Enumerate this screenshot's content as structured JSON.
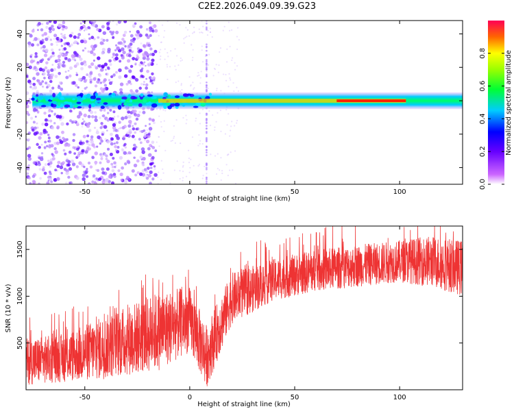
{
  "figure_title": "C2E2.2026.049.09.39.G23",
  "colors": {
    "line": "#ee3333",
    "axis": "#000000",
    "background": "#ffffff"
  },
  "chart_data": [
    {
      "type": "heatmap",
      "title": "C2E2.2026.049.09.39.G23",
      "xlabel": "Height of straight line (km)",
      "ylabel": "Frequency (Hz)",
      "xlim": [
        -78,
        130
      ],
      "ylim": [
        -50,
        48
      ],
      "x_ticks": [
        -50,
        0,
        50,
        100
      ],
      "y_ticks": [
        -40,
        -20,
        0,
        20,
        40
      ],
      "colorbar": {
        "label": "Normalized spectral amplitude",
        "range": [
          0,
          1
        ],
        "ticks": [
          0.0,
          0.2,
          0.4,
          0.6,
          0.8
        ],
        "colormap": "rainbow (magenta-blue-cyan-green-yellow-red)"
      },
      "ridge": {
        "description_frequency_hz": 0,
        "notes": "dominant signal near 0 Hz across the full height range; scattered noise below about -15 km; narrow vertical stripe near 8 km"
      }
    },
    {
      "type": "line",
      "xlabel": "Height of straight line (km)",
      "ylabel": "SNR (10 * v/v)",
      "xlim": [
        -78,
        130
      ],
      "ylim": [
        0,
        1750
      ],
      "x_ticks": [
        -50,
        0,
        50,
        100
      ],
      "y_ticks": [
        500,
        1000,
        1500
      ],
      "trend_points": [
        {
          "x": -78,
          "y_low": 50,
          "y_high": 550
        },
        {
          "x": -60,
          "y_low": 80,
          "y_high": 600
        },
        {
          "x": -45,
          "y_low": 100,
          "y_high": 750
        },
        {
          "x": -30,
          "y_low": 150,
          "y_high": 900
        },
        {
          "x": -15,
          "y_low": 200,
          "y_high": 1050
        },
        {
          "x": 0,
          "y_low": 400,
          "y_high": 1100
        },
        {
          "x": 8,
          "y_low": 20,
          "y_high": 700
        },
        {
          "x": 20,
          "y_low": 700,
          "y_high": 1250
        },
        {
          "x": 40,
          "y_low": 950,
          "y_high": 1400
        },
        {
          "x": 60,
          "y_low": 1050,
          "y_high": 1500
        },
        {
          "x": 80,
          "y_low": 1100,
          "y_high": 1550
        },
        {
          "x": 100,
          "y_low": 1150,
          "y_high": 1600
        },
        {
          "x": 115,
          "y_low": 1100,
          "y_high": 1650
        },
        {
          "x": 130,
          "y_low": 1000,
          "y_high": 1600
        }
      ]
    }
  ]
}
